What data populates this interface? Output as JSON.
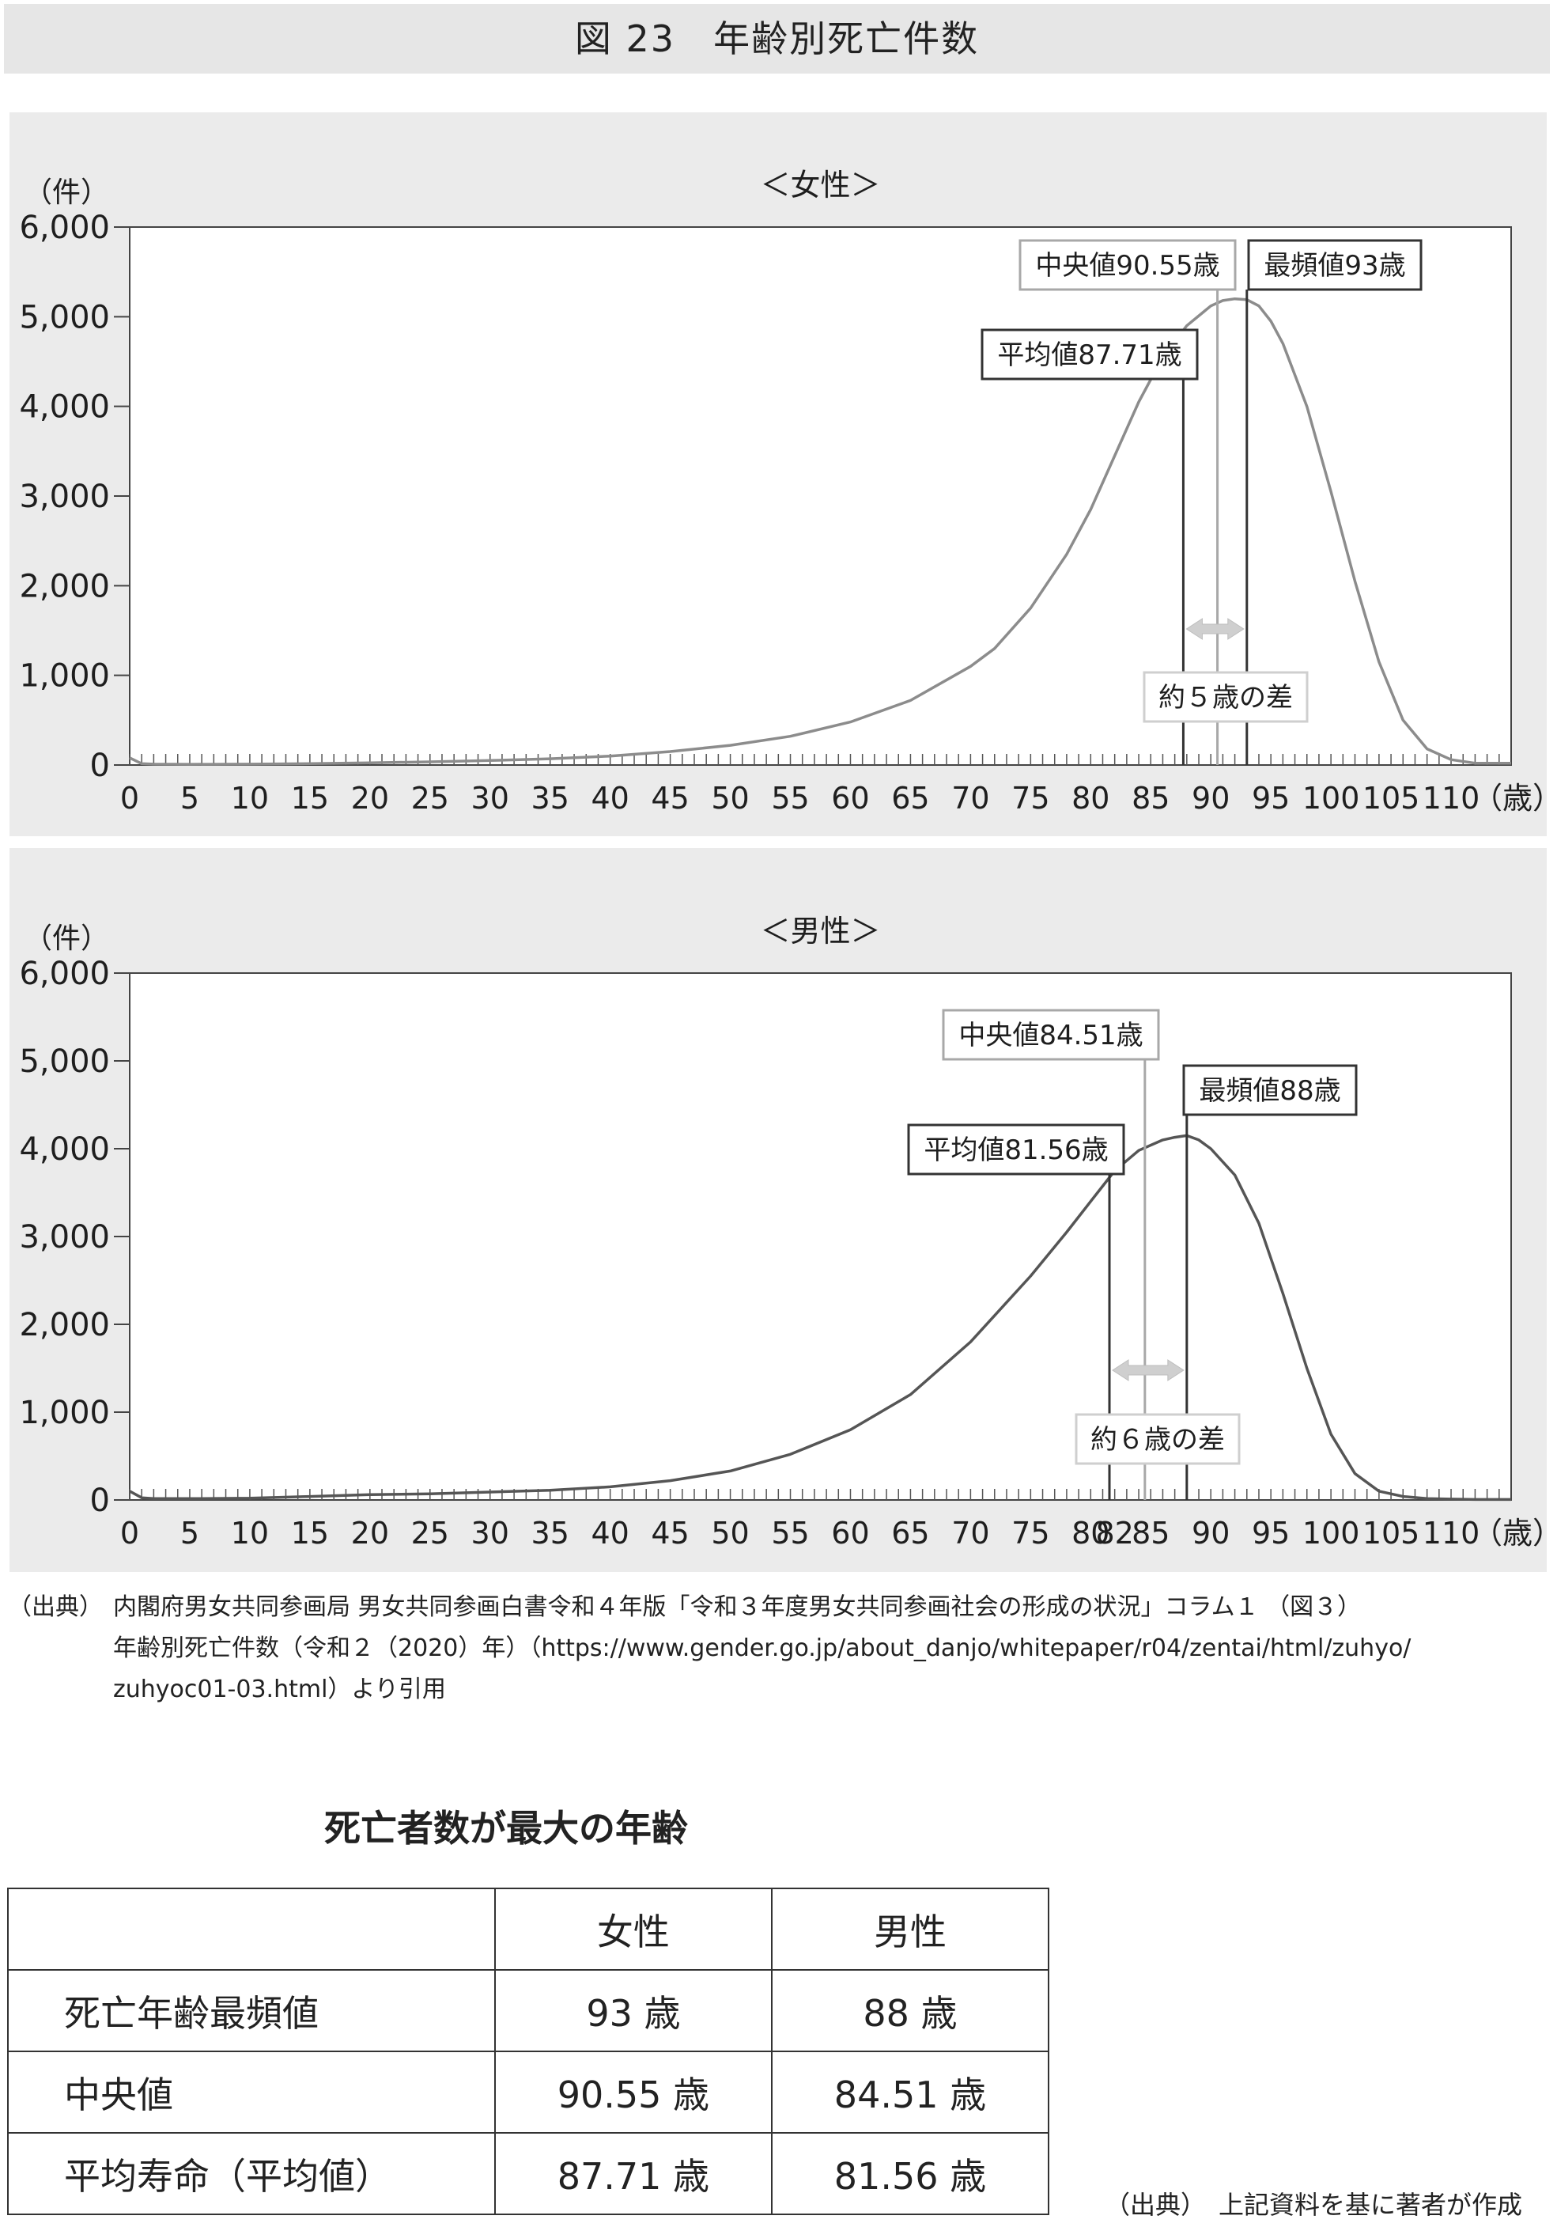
{
  "figure_title": "図 23　年齢別死亡件数",
  "chart_data": [
    {
      "type": "line",
      "title": "＜女性＞",
      "ylabel": "（件）",
      "xlabel": "（歳）",
      "xlim": [
        0,
        115
      ],
      "ylim": [
        0,
        6000
      ],
      "x_ticks": [
        "0",
        "5",
        "10",
        "15",
        "20",
        "25",
        "30",
        "35",
        "40",
        "45",
        "50",
        "55",
        "60",
        "65",
        "70",
        "75",
        "80",
        "85",
        "90",
        "95",
        "100",
        "105",
        "110"
      ],
      "y_ticks": [
        "0",
        "1,000",
        "2,000",
        "3,000",
        "4,000",
        "5,000",
        "6,000"
      ],
      "grid": false,
      "series": [
        {
          "x": [
            0,
            1,
            2,
            5,
            10,
            15,
            20,
            25,
            30,
            35,
            40,
            45,
            50,
            55,
            60,
            65,
            70,
            72,
            75,
            78,
            80,
            82,
            84,
            86,
            88,
            90,
            91,
            92,
            93,
            94,
            95,
            96,
            98,
            100,
            102,
            104,
            106,
            108,
            110,
            112,
            115
          ],
          "values": [
            80,
            15,
            10,
            8,
            10,
            15,
            25,
            35,
            50,
            70,
            100,
            150,
            220,
            320,
            480,
            720,
            1100,
            1300,
            1750,
            2350,
            2850,
            3450,
            4050,
            4550,
            4900,
            5120,
            5180,
            5200,
            5190,
            5120,
            4950,
            4700,
            4000,
            3050,
            2050,
            1150,
            500,
            180,
            60,
            20,
            20
          ]
        }
      ],
      "annotations": [
        {
          "label": "平均値87.71歳",
          "x": 87.71
        },
        {
          "label": "中央値90.55歳",
          "x": 90.55
        },
        {
          "label": "最頻値93歳",
          "x": 93
        },
        {
          "label": "約５歳の差",
          "from": 87.71,
          "to": 93
        }
      ]
    },
    {
      "type": "line",
      "title": "＜男性＞",
      "ylabel": "（件）",
      "xlabel": "（歳）",
      "xlim": [
        0,
        115
      ],
      "ylim": [
        0,
        6000
      ],
      "x_ticks": [
        "0",
        "5",
        "10",
        "15",
        "20",
        "25",
        "30",
        "35",
        "40",
        "45",
        "50",
        "55",
        "60",
        "65",
        "70",
        "75",
        "80",
        "82",
        "85",
        "90",
        "95",
        "100",
        "105",
        "110"
      ],
      "y_ticks": [
        "0",
        "1,000",
        "2,000",
        "3,000",
        "4,000",
        "5,000",
        "6,000"
      ],
      "grid": false,
      "series": [
        {
          "x": [
            0,
            1,
            2,
            5,
            10,
            15,
            20,
            25,
            30,
            35,
            40,
            45,
            50,
            55,
            60,
            65,
            70,
            75,
            78,
            80,
            82,
            84,
            86,
            87,
            88,
            89,
            90,
            92,
            94,
            96,
            98,
            100,
            102,
            104,
            106,
            108,
            110,
            112,
            115
          ],
          "values": [
            100,
            25,
            15,
            15,
            20,
            40,
            60,
            70,
            90,
            110,
            150,
            220,
            330,
            520,
            800,
            1200,
            1800,
            2550,
            3050,
            3400,
            3750,
            3980,
            4100,
            4130,
            4150,
            4100,
            4000,
            3700,
            3150,
            2350,
            1500,
            750,
            300,
            100,
            40,
            15,
            10,
            5,
            5
          ]
        }
      ],
      "annotations": [
        {
          "label": "平均値81.56歳",
          "x": 81.56
        },
        {
          "label": "中央値84.51歳",
          "x": 84.51
        },
        {
          "label": "最頻値88歳",
          "x": 88
        },
        {
          "label": "約６歳の差",
          "from": 81.56,
          "to": 88
        }
      ]
    }
  ],
  "source": {
    "label": "（出典）",
    "lines": [
      "内閣府男女共同参画局 男女共同参画白書令和４年版「令和３年度男女共同参画社会の形成の状況」コラム１ （図３）",
      "年齢別死亡件数（令和２（2020）年）（https://www.gender.go.jp/about_danjo/whitepaper/r04/zentai/html/zuhyo/",
      "zuhyoc01-03.html）より引用"
    ]
  },
  "table": {
    "title": "死亡者数が最大の年齢",
    "header": [
      "",
      "女性",
      "男性"
    ],
    "rows": [
      [
        "死亡年齢最頻値",
        "93 歳",
        "88 歳"
      ],
      [
        "中央値",
        "90.55 歳",
        "84.51 歳"
      ],
      [
        "平均寿命（平均値）",
        "87.71 歳",
        "81.56 歳"
      ]
    ]
  },
  "footnote": "（出典）　上記資料を基に著者が作成",
  "colors": {
    "panel_bg": "#ebebeb",
    "female_line": "#8c8c8c",
    "male_line": "#555555",
    "mode_line": "#333333",
    "median_line": "#a8a8a8",
    "arrow": "#cfcfcf"
  }
}
